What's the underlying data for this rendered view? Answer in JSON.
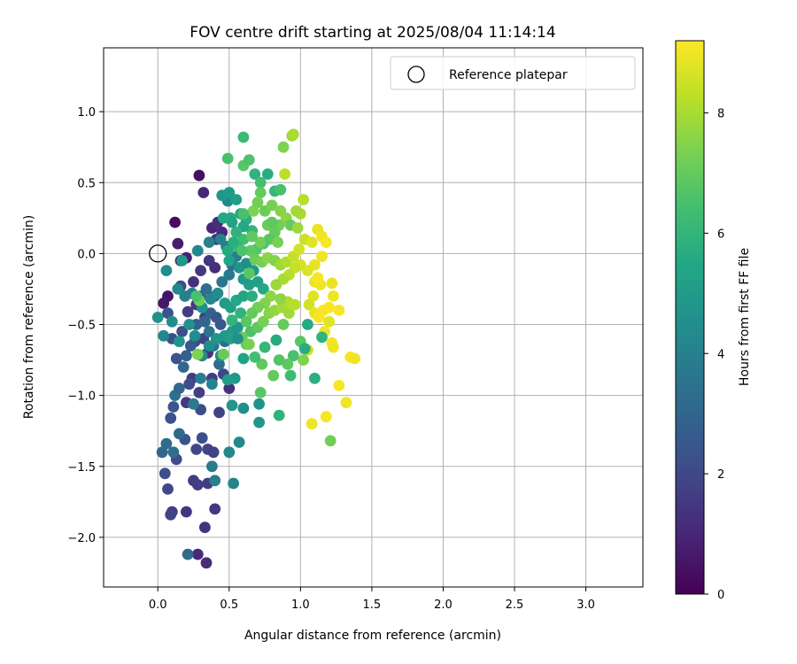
{
  "chart_data": {
    "type": "scatter",
    "title": "FOV centre drift starting at 2025/08/04 11:14:14",
    "xlabel": "Angular distance from reference (arcmin)",
    "ylabel": "Rotation from reference (arcmin)",
    "xlim": [
      -0.38,
      3.4
    ],
    "ylim": [
      -2.35,
      1.45
    ],
    "xticks": [
      "0.0",
      "0.5",
      "1.0",
      "1.5",
      "2.0",
      "2.5",
      "3.0"
    ],
    "xtick_values": [
      0.0,
      0.5,
      1.0,
      1.5,
      2.0,
      2.5,
      3.0
    ],
    "yticks": [
      "−2.0",
      "−1.5",
      "−1.0",
      "−0.5",
      "0.0",
      "0.5",
      "1.0"
    ],
    "ytick_values": [
      -2.0,
      -1.5,
      -1.0,
      -0.5,
      0.0,
      0.5,
      1.0
    ],
    "grid": true,
    "legend": {
      "position": "top-right",
      "entries": [
        "Reference platepar"
      ]
    },
    "reference_point": {
      "x": 0.0,
      "y": 0.0,
      "label": "Reference platepar"
    },
    "colorbar": {
      "label": "Hours from first FF file",
      "colormap": "viridis",
      "range": [
        0,
        9.2
      ],
      "ticks": [
        "0",
        "2",
        "4",
        "6",
        "8"
      ],
      "tick_values": [
        0,
        2,
        4,
        6,
        8
      ]
    },
    "points": [
      [
        0.12,
        0.22,
        0.3
      ],
      [
        0.29,
        0.55,
        0.4
      ],
      [
        0.07,
        -0.3,
        0.5
      ],
      [
        0.04,
        -0.35,
        0.6
      ],
      [
        0.14,
        0.07,
        0.7
      ],
      [
        0.16,
        -0.05,
        0.9
      ],
      [
        0.2,
        -0.03,
        0.8
      ],
      [
        0.32,
        0.43,
        1.0
      ],
      [
        0.38,
        0.18,
        1.0
      ],
      [
        0.42,
        0.22,
        1.2
      ],
      [
        0.45,
        0.15,
        1.1
      ],
      [
        0.41,
        0.1,
        1.3
      ],
      [
        0.36,
        -0.05,
        1.4
      ],
      [
        0.4,
        -0.1,
        1.2
      ],
      [
        0.33,
        -0.45,
        1.6
      ],
      [
        0.25,
        -0.2,
        1.3
      ],
      [
        0.21,
        -0.41,
        1.6
      ],
      [
        0.3,
        -0.12,
        1.5
      ],
      [
        0.27,
        -0.36,
        1.7
      ],
      [
        0.35,
        -0.7,
        1.4
      ],
      [
        0.24,
        -0.88,
        1.6
      ],
      [
        0.2,
        -1.05,
        1.5
      ],
      [
        0.29,
        -0.98,
        1.7
      ],
      [
        0.43,
        -1.12,
        1.8
      ],
      [
        0.46,
        -0.85,
        1.9
      ],
      [
        0.5,
        -0.95,
        1.3
      ],
      [
        0.38,
        -0.88,
        1.6
      ],
      [
        0.32,
        -0.6,
        1.8
      ],
      [
        0.26,
        -0.62,
        2.0
      ],
      [
        0.22,
        -0.92,
        2.1
      ],
      [
        0.17,
        -0.55,
        2.2
      ],
      [
        0.13,
        -0.74,
        2.3
      ],
      [
        0.1,
        -0.6,
        2.2
      ],
      [
        0.16,
        -0.23,
        2.0
      ],
      [
        0.07,
        -0.42,
        2.4
      ],
      [
        0.3,
        -1.1,
        2.1
      ],
      [
        0.31,
        -1.3,
        2.2
      ],
      [
        0.35,
        -1.38,
        1.9
      ],
      [
        0.39,
        -1.4,
        1.8
      ],
      [
        0.27,
        -1.38,
        2.0
      ],
      [
        0.25,
        -1.6,
        1.6
      ],
      [
        0.28,
        -1.63,
        1.7
      ],
      [
        0.35,
        -1.62,
        1.6
      ],
      [
        0.4,
        -1.8,
        1.5
      ],
      [
        0.2,
        -1.82,
        1.4
      ],
      [
        0.1,
        -1.82,
        1.6
      ],
      [
        0.09,
        -1.84,
        1.8
      ],
      [
        0.07,
        -1.66,
        2.0
      ],
      [
        0.05,
        -1.55,
        2.2
      ],
      [
        0.13,
        -1.45,
        2.1
      ],
      [
        0.19,
        -1.31,
        2.4
      ],
      [
        0.11,
        -1.08,
        2.5
      ],
      [
        0.09,
        -1.16,
        2.3
      ],
      [
        0.28,
        -2.12,
        1.1
      ],
      [
        0.33,
        -1.93,
        1.3
      ],
      [
        0.34,
        -2.18,
        1.2
      ],
      [
        0.21,
        -2.12,
        3.2
      ],
      [
        0.03,
        -1.4,
        3.0
      ],
      [
        0.06,
        -1.34,
        3.2
      ],
      [
        0.11,
        -1.4,
        3.3
      ],
      [
        0.15,
        -1.27,
        3.1
      ],
      [
        0.12,
        -1.0,
        3.4
      ],
      [
        0.15,
        -0.95,
        3.0
      ],
      [
        0.18,
        -0.8,
        3.1
      ],
      [
        0.2,
        -0.72,
        2.8
      ],
      [
        0.23,
        -0.65,
        2.6
      ],
      [
        0.27,
        -0.5,
        2.7
      ],
      [
        0.33,
        -0.48,
        3.0
      ],
      [
        0.37,
        -0.42,
        2.9
      ],
      [
        0.41,
        -0.45,
        2.6
      ],
      [
        0.44,
        -0.5,
        2.5
      ],
      [
        0.47,
        -0.62,
        3.3
      ],
      [
        0.43,
        -0.78,
        3.2
      ],
      [
        0.39,
        -0.65,
        3.5
      ],
      [
        0.36,
        -0.55,
        3.6
      ],
      [
        0.3,
        -0.3,
        3.1
      ],
      [
        0.34,
        -0.25,
        3.3
      ],
      [
        0.4,
        -0.3,
        3.4
      ],
      [
        0.45,
        -0.2,
        3.6
      ],
      [
        0.5,
        -0.15,
        3.7
      ],
      [
        0.52,
        -0.08,
        3.4
      ],
      [
        0.55,
        -0.02,
        3.9
      ],
      [
        0.48,
        0.05,
        3.8
      ],
      [
        0.44,
        0.1,
        4.0
      ],
      [
        0.36,
        0.08,
        4.1
      ],
      [
        0.28,
        0.02,
        4.2
      ],
      [
        0.24,
        -0.28,
        3.9
      ],
      [
        0.19,
        -0.3,
        4.0
      ],
      [
        0.14,
        -0.25,
        4.3
      ],
      [
        0.06,
        -0.12,
        4.4
      ],
      [
        0.0,
        -0.45,
        4.6
      ],
      [
        0.04,
        -0.58,
        4.2
      ],
      [
        0.1,
        -0.48,
        4.5
      ],
      [
        0.15,
        -0.62,
        4.7
      ],
      [
        0.22,
        -0.5,
        4.6
      ],
      [
        0.26,
        -0.58,
        4.4
      ],
      [
        0.31,
        -0.72,
        4.3
      ],
      [
        0.36,
        -0.65,
        4.5
      ],
      [
        0.41,
        -0.6,
        4.8
      ],
      [
        0.47,
        -0.58,
        4.9
      ],
      [
        0.52,
        -0.55,
        5.0
      ],
      [
        0.56,
        -0.52,
        4.8
      ],
      [
        0.51,
        -0.6,
        5.2
      ],
      [
        0.6,
        -0.74,
        5.3
      ],
      [
        0.54,
        -0.88,
        4.9
      ],
      [
        0.49,
        -0.89,
        5.1
      ],
      [
        0.52,
        -1.07,
        4.7
      ],
      [
        0.6,
        -1.09,
        4.5
      ],
      [
        0.71,
        -1.06,
        4.6
      ],
      [
        0.71,
        -1.19,
        4.8
      ],
      [
        0.57,
        -1.33,
        4.3
      ],
      [
        0.53,
        -1.62,
        4.1
      ],
      [
        0.5,
        -1.4,
        4.2
      ],
      [
        0.4,
        -1.6,
        4.0
      ],
      [
        0.38,
        -1.5,
        3.8
      ],
      [
        0.25,
        -1.06,
        3.7
      ],
      [
        0.3,
        -0.88,
        3.9
      ],
      [
        0.38,
        -0.92,
        4.1
      ],
      [
        0.44,
        -0.72,
        4.4
      ],
      [
        0.31,
        -0.38,
        4.6
      ],
      [
        0.37,
        -0.32,
        4.2
      ],
      [
        0.42,
        -0.28,
        4.4
      ],
      [
        0.47,
        -0.35,
        4.9
      ],
      [
        0.51,
        -0.38,
        5.2
      ],
      [
        0.55,
        -0.33,
        5.5
      ],
      [
        0.6,
        -0.3,
        5.4
      ],
      [
        0.64,
        -0.22,
        5.1
      ],
      [
        0.6,
        -0.18,
        5.0
      ],
      [
        0.57,
        -0.1,
        4.7
      ],
      [
        0.62,
        -0.07,
        4.5
      ],
      [
        0.67,
        -0.12,
        4.9
      ],
      [
        0.7,
        -0.2,
        5.2
      ],
      [
        0.74,
        -0.25,
        5.5
      ],
      [
        0.66,
        -0.3,
        5.7
      ],
      [
        0.58,
        -0.42,
        5.9
      ],
      [
        0.52,
        -0.47,
        6.0
      ],
      [
        0.49,
        0.37,
        4.3
      ],
      [
        0.45,
        0.41,
        4.8
      ],
      [
        0.5,
        0.43,
        5.0
      ],
      [
        0.55,
        0.38,
        5.2
      ],
      [
        0.58,
        0.28,
        5.5
      ],
      [
        0.62,
        0.24,
        5.8
      ],
      [
        0.66,
        0.16,
        6.0
      ],
      [
        0.51,
        0.25,
        5.6
      ],
      [
        0.49,
        0.67,
        6.5
      ],
      [
        0.6,
        0.62,
        6.8
      ],
      [
        0.64,
        0.66,
        6.6
      ],
      [
        0.6,
        0.82,
        6.2
      ],
      [
        0.68,
        0.56,
        5.9
      ],
      [
        0.72,
        0.5,
        6.4
      ],
      [
        0.77,
        0.56,
        5.7
      ],
      [
        0.82,
        0.44,
        6.1
      ],
      [
        0.86,
        0.45,
        6.5
      ],
      [
        0.72,
        0.43,
        7.0
      ],
      [
        0.7,
        0.36,
        7.2
      ],
      [
        0.67,
        0.3,
        7.4
      ],
      [
        0.75,
        0.3,
        7.1
      ],
      [
        0.8,
        0.34,
        7.3
      ],
      [
        0.86,
        0.3,
        7.5
      ],
      [
        0.9,
        0.25,
        7.6
      ],
      [
        0.93,
        0.2,
        7.0
      ],
      [
        0.98,
        0.18,
        7.8
      ],
      [
        1.0,
        0.28,
        8.0
      ],
      [
        1.02,
        0.38,
        8.2
      ],
      [
        0.97,
        0.3,
        7.9
      ],
      [
        0.88,
        0.75,
        7.4
      ],
      [
        0.94,
        0.83,
        7.8
      ],
      [
        0.95,
        0.84,
        8.0
      ],
      [
        0.89,
        0.56,
        8.3
      ],
      [
        0.85,
        0.2,
        7.2
      ],
      [
        0.82,
        0.15,
        7.0
      ],
      [
        0.78,
        0.1,
        6.8
      ],
      [
        0.74,
        0.07,
        6.6
      ],
      [
        0.69,
        0.03,
        6.7
      ],
      [
        0.65,
        0.02,
        6.9
      ],
      [
        0.6,
        0.1,
        6.3
      ],
      [
        0.56,
        0.05,
        6.1
      ],
      [
        0.53,
        0.08,
        5.8
      ],
      [
        0.49,
        0.02,
        5.6
      ],
      [
        0.5,
        -0.05,
        5.3
      ],
      [
        0.68,
        -0.04,
        7.1
      ],
      [
        0.73,
        -0.06,
        7.3
      ],
      [
        0.77,
        -0.03,
        7.6
      ],
      [
        0.82,
        -0.05,
        7.5
      ],
      [
        0.86,
        -0.08,
        7.8
      ],
      [
        0.9,
        -0.06,
        8.1
      ],
      [
        0.95,
        -0.02,
        8.4
      ],
      [
        0.99,
        0.03,
        8.6
      ],
      [
        1.03,
        0.1,
        8.5
      ],
      [
        1.08,
        0.08,
        8.8
      ],
      [
        1.12,
        0.17,
        8.9
      ],
      [
        1.15,
        0.12,
        9.0
      ],
      [
        1.18,
        0.08,
        9.1
      ],
      [
        1.15,
        -0.02,
        9.0
      ],
      [
        1.1,
        -0.08,
        8.9
      ],
      [
        1.05,
        -0.12,
        8.7
      ],
      [
        1.0,
        -0.08,
        8.6
      ],
      [
        0.96,
        -0.1,
        8.4
      ],
      [
        0.92,
        -0.15,
        8.2
      ],
      [
        0.88,
        -0.18,
        8.0
      ],
      [
        0.83,
        -0.22,
        7.8
      ],
      [
        0.79,
        -0.3,
        7.6
      ],
      [
        0.75,
        -0.35,
        7.4
      ],
      [
        0.7,
        -0.38,
        7.2
      ],
      [
        0.66,
        -0.42,
        7.0
      ],
      [
        0.62,
        -0.48,
        6.8
      ],
      [
        0.65,
        -0.55,
        6.6
      ],
      [
        0.7,
        -0.52,
        6.9
      ],
      [
        0.74,
        -0.48,
        7.3
      ],
      [
        0.78,
        -0.42,
        7.5
      ],
      [
        0.82,
        -0.4,
        7.7
      ],
      [
        0.87,
        -0.38,
        7.9
      ],
      [
        0.91,
        -0.34,
        8.1
      ],
      [
        0.86,
        -0.32,
        7.6
      ],
      [
        0.88,
        -0.5,
        7.0
      ],
      [
        0.92,
        -0.42,
        7.9
      ],
      [
        0.96,
        -0.36,
        8.2
      ],
      [
        1.1,
        -0.2,
        8.9
      ],
      [
        1.14,
        -0.22,
        9.0
      ],
      [
        1.12,
        -0.17,
        9.1
      ],
      [
        1.09,
        -0.3,
        8.8
      ],
      [
        1.06,
        -0.36,
        8.6
      ],
      [
        1.1,
        -0.42,
        8.9
      ],
      [
        1.16,
        -0.4,
        9.1
      ],
      [
        1.2,
        -0.38,
        9.1
      ],
      [
        1.23,
        -0.3,
        9.0
      ],
      [
        1.22,
        -0.21,
        8.9
      ],
      [
        1.27,
        -0.4,
        9.1
      ],
      [
        1.2,
        -0.48,
        8.8
      ],
      [
        1.17,
        -0.55,
        9.0
      ],
      [
        1.13,
        -0.45,
        9.1
      ],
      [
        1.22,
        -0.63,
        9.1
      ],
      [
        1.23,
        -0.66,
        9.0
      ],
      [
        1.35,
        -0.73,
        9.1
      ],
      [
        1.38,
        -0.74,
        9.0
      ],
      [
        1.27,
        -0.93,
        9.1
      ],
      [
        1.32,
        -1.05,
        9.0
      ],
      [
        1.08,
        -1.2,
        9.0
      ],
      [
        1.18,
        -1.15,
        9.1
      ],
      [
        1.21,
        -1.32,
        7.2
      ],
      [
        1.15,
        -0.59,
        5.9
      ],
      [
        1.05,
        -0.68,
        8.5
      ],
      [
        1.0,
        -0.62,
        6.8
      ],
      [
        1.02,
        -0.75,
        7.4
      ],
      [
        0.95,
        -0.72,
        6.5
      ],
      [
        0.91,
        -0.78,
        6.9
      ],
      [
        0.85,
        -0.75,
        6.7
      ],
      [
        0.81,
        -0.86,
        7.0
      ],
      [
        0.73,
        -0.78,
        6.9
      ],
      [
        0.72,
        -0.98,
        6.8
      ],
      [
        0.85,
        -1.14,
        5.9
      ],
      [
        0.93,
        -0.86,
        6.3
      ],
      [
        1.03,
        -0.67,
        5.7
      ],
      [
        1.05,
        -0.5,
        5.6
      ],
      [
        1.1,
        -0.88,
        5.8
      ],
      [
        0.83,
        -0.61,
        5.6
      ],
      [
        0.75,
        -0.66,
        6.1
      ],
      [
        0.62,
        -0.64,
        7.0
      ],
      [
        0.59,
        -0.59,
        7.1
      ],
      [
        0.56,
        -0.6,
        4.6
      ],
      [
        0.64,
        -0.64,
        7.3
      ],
      [
        0.68,
        -0.73,
        6.4
      ],
      [
        0.46,
        -0.71,
        7.0
      ],
      [
        0.28,
        -0.71,
        7.4
      ],
      [
        0.29,
        -0.33,
        7.2
      ],
      [
        0.27,
        -0.3,
        6.5
      ],
      [
        0.17,
        -0.05,
        4.9
      ],
      [
        0.59,
        0.02,
        6.6
      ],
      [
        0.64,
        -0.14,
        6.8
      ],
      [
        0.72,
        0.08,
        7.2
      ],
      [
        0.77,
        0.2,
        7.1
      ],
      [
        0.8,
        0.22,
        6.9
      ],
      [
        0.84,
        0.08,
        7.3
      ],
      [
        0.6,
        0.19,
        5.5
      ],
      [
        0.55,
        0.15,
        5.9
      ],
      [
        0.6,
        0.28,
        6.5
      ],
      [
        0.66,
        0.12,
        6.9
      ],
      [
        0.52,
        0.22,
        5.3
      ],
      [
        0.46,
        0.25,
        5.5
      ]
    ]
  }
}
